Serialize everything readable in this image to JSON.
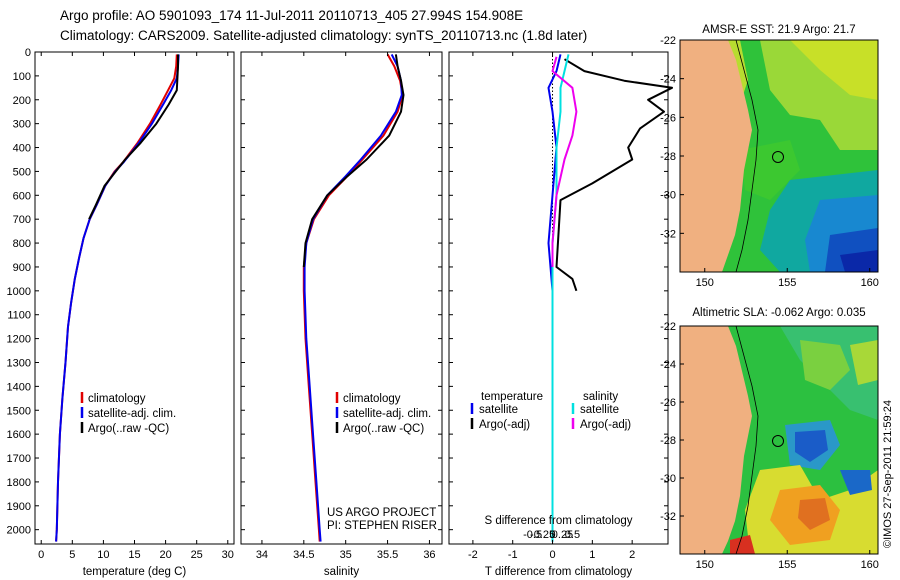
{
  "header": {
    "line1": "Argo profile: AO 5901093_174 11-Jul-2011 20110713_405 27.994S 154.908E",
    "line2": "Climatology: CARS2009. Satellite-adjusted climatology: synTS_20110713.nc (1.8d later)"
  },
  "colors": {
    "climatology": "#e00000",
    "satellite": "#0000ee",
    "argo": "#000000",
    "sat_salinity": "#00e0e0",
    "argo_salinity": "#ee00ee",
    "land": "#f0b080"
  },
  "chart_data": [
    {
      "type": "line",
      "name": "temperature-profile",
      "xlabel": "temperature (deg C)",
      "ylabel": "",
      "xlim": [
        -1,
        31
      ],
      "ylim": [
        2060,
        0
      ],
      "xticks": [
        0,
        5,
        10,
        15,
        20,
        25,
        30
      ],
      "yticks": [
        0,
        100,
        200,
        300,
        400,
        500,
        600,
        700,
        800,
        900,
        1000,
        1100,
        1200,
        1300,
        1400,
        1500,
        1600,
        1700,
        1800,
        1900,
        2000
      ],
      "series": [
        {
          "name": "climatology",
          "color": "#e00000",
          "points": [
            [
              21.8,
              10
            ],
            [
              21.7,
              60
            ],
            [
              21.4,
              110
            ],
            [
              20.4,
              160
            ],
            [
              19.2,
              220
            ],
            [
              17.5,
              300
            ],
            [
              15.5,
              380
            ],
            [
              13.2,
              460
            ],
            [
              11.8,
              500
            ],
            [
              10.3,
              560
            ],
            [
              8.9,
              640
            ],
            [
              7.8,
              700
            ],
            [
              6.8,
              780
            ],
            [
              6.1,
              860
            ],
            [
              5.4,
              950
            ],
            [
              4.8,
              1050
            ],
            [
              4.3,
              1150
            ],
            [
              3.9,
              1300
            ],
            [
              3.4,
              1450
            ],
            [
              3.0,
              1600
            ],
            [
              2.7,
              1800
            ],
            [
              2.5,
              2000
            ],
            [
              2.4,
              2050
            ]
          ]
        },
        {
          "name": "satellite-adj. clim.",
          "color": "#0000ee",
          "points": [
            [
              22.1,
              10
            ],
            [
              22.0,
              60
            ],
            [
              21.8,
              110
            ],
            [
              20.9,
              160
            ],
            [
              19.6,
              220
            ],
            [
              17.8,
              300
            ],
            [
              15.7,
              380
            ],
            [
              13.3,
              460
            ],
            [
              11.9,
              500
            ],
            [
              10.3,
              560
            ],
            [
              8.9,
              640
            ],
            [
              7.8,
              700
            ],
            [
              6.8,
              780
            ],
            [
              6.1,
              860
            ],
            [
              5.4,
              950
            ],
            [
              4.8,
              1050
            ],
            [
              4.3,
              1150
            ],
            [
              3.9,
              1300
            ],
            [
              3.4,
              1450
            ],
            [
              3.0,
              1600
            ],
            [
              2.7,
              1800
            ],
            [
              2.5,
              2000
            ],
            [
              2.4,
              2050
            ]
          ]
        },
        {
          "name": "Argo(..raw -QC)",
          "color": "#000000",
          "points": [
            [
              22.0,
              10
            ],
            [
              22.0,
              60
            ],
            [
              21.9,
              110
            ],
            [
              21.8,
              160
            ],
            [
              20.5,
              220
            ],
            [
              18.5,
              300
            ],
            [
              16.0,
              380
            ],
            [
              13.5,
              450
            ],
            [
              12.0,
              500
            ],
            [
              10.2,
              560
            ],
            [
              8.8,
              640
            ],
            [
              7.7,
              700
            ]
          ]
        }
      ],
      "legend": [
        "climatology",
        "satellite-adj. clim.",
        "Argo(..raw -QC)"
      ]
    },
    {
      "type": "line",
      "name": "salinity-profile",
      "xlabel": "salinity",
      "xlim": [
        33.75,
        36.15
      ],
      "ylim": [
        2060,
        0
      ],
      "xticks": [
        34,
        34.5,
        35,
        35.5,
        36
      ],
      "series": [
        {
          "name": "climatology",
          "color": "#e00000",
          "points": [
            [
              35.5,
              10
            ],
            [
              35.58,
              60
            ],
            [
              35.65,
              120
            ],
            [
              35.68,
              180
            ],
            [
              35.62,
              250
            ],
            [
              35.45,
              350
            ],
            [
              35.2,
              450
            ],
            [
              35.02,
              520
            ],
            [
              34.8,
              600
            ],
            [
              34.62,
              700
            ],
            [
              34.53,
              800
            ],
            [
              34.5,
              900
            ],
            [
              34.5,
              1000
            ],
            [
              34.52,
              1200
            ],
            [
              34.56,
              1400
            ],
            [
              34.6,
              1600
            ],
            [
              34.64,
              1800
            ],
            [
              34.68,
              2000
            ],
            [
              34.69,
              2050
            ]
          ]
        },
        {
          "name": "satellite-adj. clim.",
          "color": "#0000ee",
          "points": [
            [
              35.55,
              10
            ],
            [
              35.62,
              60
            ],
            [
              35.66,
              120
            ],
            [
              35.67,
              180
            ],
            [
              35.6,
              250
            ],
            [
              35.42,
              350
            ],
            [
              35.18,
              450
            ],
            [
              35.0,
              520
            ],
            [
              34.78,
              600
            ],
            [
              34.61,
              700
            ],
            [
              34.53,
              800
            ],
            [
              34.51,
              900
            ],
            [
              34.51,
              1000
            ],
            [
              34.53,
              1200
            ],
            [
              34.57,
              1400
            ],
            [
              34.61,
              1600
            ],
            [
              34.65,
              1800
            ],
            [
              34.69,
              2000
            ],
            [
              34.7,
              2050
            ]
          ]
        },
        {
          "name": "Argo(..raw -QC)",
          "color": "#000000",
          "points": [
            [
              35.6,
              10
            ],
            [
              35.62,
              60
            ],
            [
              35.66,
              120
            ],
            [
              35.69,
              180
            ],
            [
              35.66,
              250
            ],
            [
              35.52,
              350
            ],
            [
              35.25,
              450
            ],
            [
              35.02,
              520
            ],
            [
              34.78,
              600
            ],
            [
              34.6,
              700
            ],
            [
              34.52,
              800
            ],
            [
              34.5,
              900
            ]
          ]
        }
      ],
      "legend": [
        "climatology",
        "satellite-adj. clim.",
        "Argo(..raw -QC)"
      ],
      "annotation": [
        "US ARGO PROJECT",
        "PI: STEPHEN RISER"
      ]
    },
    {
      "type": "line",
      "name": "difference-profile",
      "xlabel": "T difference from climatology",
      "xlabel_top": "S difference from climatology",
      "xlim": [
        -2.6,
        2.9
      ],
      "ylim": [
        2060,
        0
      ],
      "xticks": [
        -2,
        -1,
        0,
        1,
        2
      ],
      "sticks": [
        -0.5,
        -0.25,
        0,
        0.25,
        0.5
      ],
      "stick_labels": [
        "-0.5",
        "-0.25",
        "0",
        "0.25",
        "0.5"
      ],
      "series": [
        {
          "name": "temperature satellite",
          "color": "#0000ee",
          "points": [
            [
              0.2,
              10
            ],
            [
              0.1,
              80
            ],
            [
              -0.1,
              150
            ],
            [
              0.0,
              250
            ],
            [
              0.1,
              400
            ],
            [
              0.0,
              600
            ],
            [
              -0.1,
              800
            ],
            [
              0.0,
              1000
            ],
            [
              0.0,
              1500
            ],
            [
              0.0,
              2050
            ]
          ]
        },
        {
          "name": "temperature Argo(-adj)",
          "color": "#000000",
          "points": [
            [
              0.3,
              30
            ],
            [
              0.8,
              80
            ],
            [
              1.8,
              120
            ],
            [
              3.0,
              150
            ],
            [
              2.4,
              200
            ],
            [
              2.8,
              250
            ],
            [
              2.2,
              320
            ],
            [
              1.9,
              400
            ],
            [
              2.0,
              450
            ],
            [
              1.0,
              550
            ],
            [
              0.2,
              620
            ],
            [
              0.1,
              900
            ],
            [
              0.5,
              950
            ],
            [
              0.6,
              1000
            ]
          ]
        },
        {
          "name": "salinity satellite",
          "color": "#00e0e0",
          "points": [
            [
              0.4,
              10
            ],
            [
              0.3,
              80
            ],
            [
              0.2,
              150
            ],
            [
              0.2,
              250
            ],
            [
              0.1,
              400
            ],
            [
              0.1,
              600
            ],
            [
              0.0,
              800
            ],
            [
              0.0,
              1000
            ],
            [
              0.0,
              1500
            ],
            [
              0.0,
              2050
            ]
          ]
        },
        {
          "name": "salinity Argo(-adj)",
          "color": "#ee00ee",
          "points": [
            [
              0.1,
              20
            ],
            [
              0.0,
              80
            ],
            [
              0.5,
              150
            ],
            [
              0.6,
              250
            ],
            [
              0.5,
              350
            ],
            [
              0.3,
              450
            ],
            [
              0.1,
              600
            ],
            [
              0.0,
              800
            ],
            [
              0.0,
              900
            ]
          ]
        }
      ],
      "legend": {
        "temperature_header": "temperature",
        "salinity_header": "salinity",
        "temp_satellite": "satellite",
        "temp_argo": "Argo(-adj)",
        "sal_satellite": "satellite",
        "sal_argo": "Argo(-adj)"
      }
    },
    {
      "type": "heatmap",
      "name": "sst-map",
      "title": "AMSR-E SST: 21.9 Argo: 21.7",
      "xticks": [
        150,
        155,
        160
      ],
      "yticks": [
        -22,
        -24,
        -26,
        -28,
        -30,
        -32
      ],
      "xlim": [
        148.5,
        160.5
      ],
      "ylim": [
        -34,
        -22
      ]
    },
    {
      "type": "heatmap",
      "name": "sla-map",
      "title": "Altimetric SLA: -0.062 Argo: 0.035",
      "xticks": [
        150,
        155,
        160
      ],
      "yticks": [
        -22,
        -24,
        -26,
        -28,
        -30,
        -32
      ],
      "xlim": [
        148.5,
        160.5
      ],
      "ylim": [
        -34,
        -22
      ]
    }
  ],
  "credit": "©IMOS 27-Sep-2011 21:59:24"
}
